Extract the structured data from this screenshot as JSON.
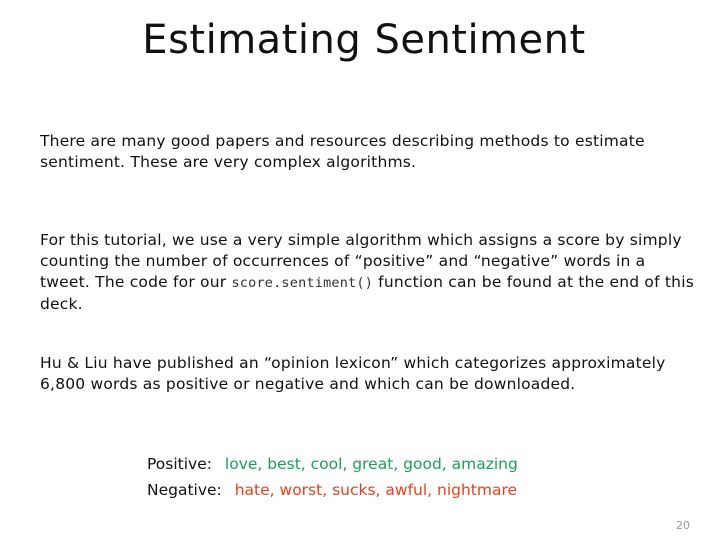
{
  "slide": {
    "title": "Estimating Sentiment",
    "paragraph1": "There are many good papers and resources describing methods to estimate sentiment.  These are very complex algorithms.",
    "paragraph2": {
      "before_code": "For this tutorial, we use a very simple algorithm which assigns a score by simply counting the number of occurrences of “positive” and “negative” words in a tweet. The code for our ",
      "code": "score.sentiment()",
      "after_code": " function can be found at the end of this deck."
    },
    "paragraph3": "Hu & Liu have published an “opinion lexicon” which categorizes approximately 6,800 words as positive or negative and which can be downloaded.",
    "examples": {
      "positive_label": "Positive:",
      "positive_words": "love, best, cool, great, good, amazing",
      "negative_label": "Negative:",
      "negative_words": "hate, worst, sucks, awful, nightmare"
    },
    "page_number": "20"
  },
  "colors": {
    "positive": "#19a05a",
    "negative": "#e8401c"
  }
}
